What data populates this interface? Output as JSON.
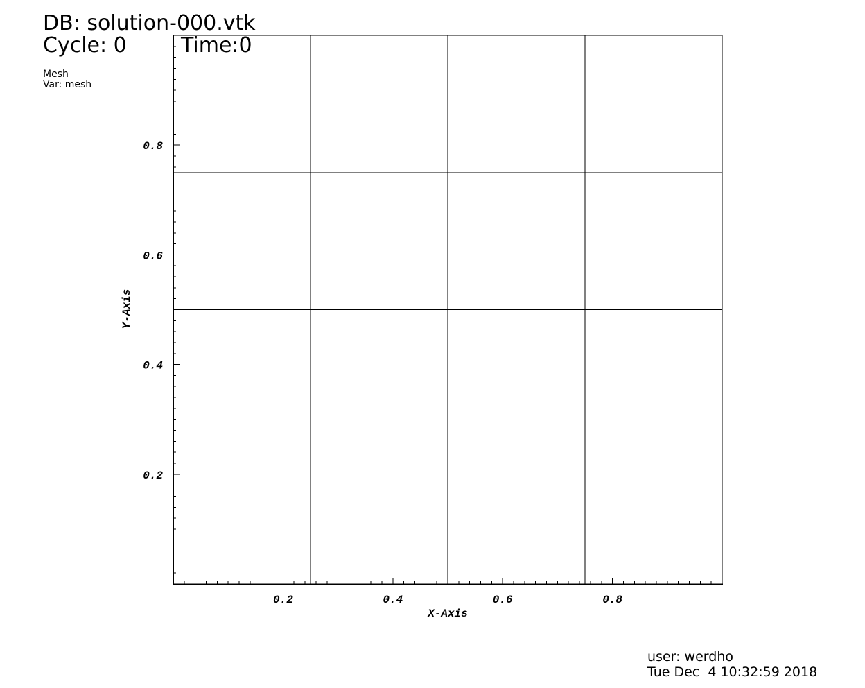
{
  "header": {
    "db": "DB: solution-000.vtk",
    "cycle": "Cycle: 0",
    "time": "Time:0",
    "plot_name": "Mesh",
    "var": "Var: mesh"
  },
  "footer": {
    "user": "user: werdho",
    "date": "Tue Dec  4 10:32:59 2018"
  },
  "colors": {
    "background": "#ffffff",
    "lines": "#000000"
  },
  "chart_data": {
    "type": "mesh",
    "xlabel": "X-Axis",
    "ylabel": "Y-Axis",
    "xlim": [
      0,
      1
    ],
    "ylim": [
      0,
      1
    ],
    "x_ticks": [
      0.2,
      0.4,
      0.6,
      0.8
    ],
    "y_ticks": [
      0.2,
      0.4,
      0.6,
      0.8
    ],
    "x_tick_labels": [
      "0.2",
      "0.4",
      "0.6",
      "0.8"
    ],
    "y_tick_labels": [
      "0.2",
      "0.4",
      "0.6",
      "0.8"
    ],
    "mesh_x": [
      0,
      0.25,
      0.5,
      0.75,
      1
    ],
    "mesh_y": [
      0,
      0.25,
      0.5,
      0.75,
      1
    ],
    "minor_tick_step": 0.02
  }
}
